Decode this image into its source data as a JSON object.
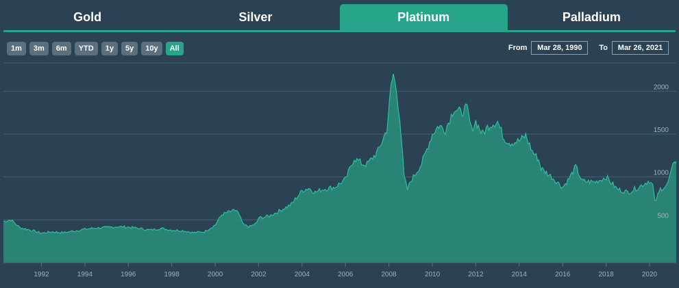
{
  "tabs": [
    {
      "label": "Gold",
      "active": false
    },
    {
      "label": "Silver",
      "active": false
    },
    {
      "label": "Platinum",
      "active": true
    },
    {
      "label": "Palladium",
      "active": false
    }
  ],
  "range_buttons": [
    {
      "label": "1m",
      "active": false
    },
    {
      "label": "3m",
      "active": false
    },
    {
      "label": "6m",
      "active": false
    },
    {
      "label": "YTD",
      "active": false
    },
    {
      "label": "1y",
      "active": false
    },
    {
      "label": "5y",
      "active": false
    },
    {
      "label": "10y",
      "active": false
    },
    {
      "label": "All",
      "active": true
    }
  ],
  "date_range": {
    "from_label": "From",
    "from_value": "Mar 28, 1990",
    "to_label": "To",
    "to_value": "Mar 26, 2021"
  },
  "colors": {
    "background": "#2b4254",
    "accent": "#26a58a",
    "area_fill": "#2a8f7c",
    "area_line": "#2fbf9e"
  },
  "chart_data": {
    "type": "area",
    "series": [
      {
        "x": [
          1990.25,
          1990.6,
          1991.0,
          1991.5,
          1992.0,
          1992.5,
          1993.0,
          1993.5,
          1994.0,
          1994.5,
          1995.0,
          1995.5,
          1996.0,
          1996.5,
          1997.0,
          1997.5,
          1998.0,
          1998.5,
          1999.0,
          1999.5,
          2000.0,
          2000.3,
          2000.6,
          2001.0,
          2001.3,
          2001.6,
          2001.9,
          2002.0,
          2002.5,
          2003.0,
          2003.5,
          2004.0,
          2004.3,
          2004.6,
          2005.0,
          2005.5,
          2006.0,
          2006.4,
          2006.8,
          2007.0,
          2007.5,
          2007.9,
          2008.1,
          2008.2,
          2008.35,
          2008.5,
          2008.7,
          2008.85,
          2009.0,
          2009.5,
          2010.0,
          2010.3,
          2010.6,
          2011.0,
          2011.3,
          2011.6,
          2011.8,
          2012.0,
          2012.3,
          2012.6,
          2013.0,
          2013.3,
          2013.6,
          2014.0,
          2014.3,
          2014.6,
          2014.9,
          2015.0,
          2015.5,
          2016.0,
          2016.3,
          2016.6,
          2016.9,
          2017.0,
          2017.5,
          2018.0,
          2018.5,
          2019.0,
          2019.5,
          2020.0,
          2020.15,
          2020.25,
          2020.5,
          2020.8,
          2021.0,
          2021.15,
          2021.23
        ],
        "values": [
          480,
          500,
          410,
          380,
          345,
          360,
          350,
          370,
          390,
          405,
          410,
          420,
          415,
          400,
          380,
          400,
          380,
          375,
          350,
          360,
          440,
          560,
          590,
          610,
          440,
          420,
          460,
          520,
          545,
          610,
          680,
          840,
          870,
          820,
          860,
          880,
          970,
          1220,
          1150,
          1150,
          1300,
          1550,
          2050,
          2200,
          2000,
          1700,
          1000,
          850,
          950,
          1150,
          1500,
          1600,
          1550,
          1800,
          1750,
          1800,
          1550,
          1650,
          1500,
          1600,
          1650,
          1450,
          1400,
          1420,
          1480,
          1300,
          1200,
          1100,
          1000,
          880,
          980,
          1120,
          950,
          950,
          940,
          1000,
          860,
          820,
          880,
          960,
          900,
          700,
          860,
          900,
          1050,
          1200,
          1180
        ]
      }
    ],
    "ylim": [
      0,
      2330
    ],
    "xlim": [
      1990.25,
      2021.23
    ],
    "yticks": [
      500,
      1000,
      1500,
      2000
    ],
    "xticks": [
      1992,
      1994,
      1996,
      1998,
      2000,
      2002,
      2004,
      2006,
      2008,
      2010,
      2012,
      2014,
      2016,
      2018,
      2020
    ],
    "grid": true,
    "legend": "none"
  }
}
